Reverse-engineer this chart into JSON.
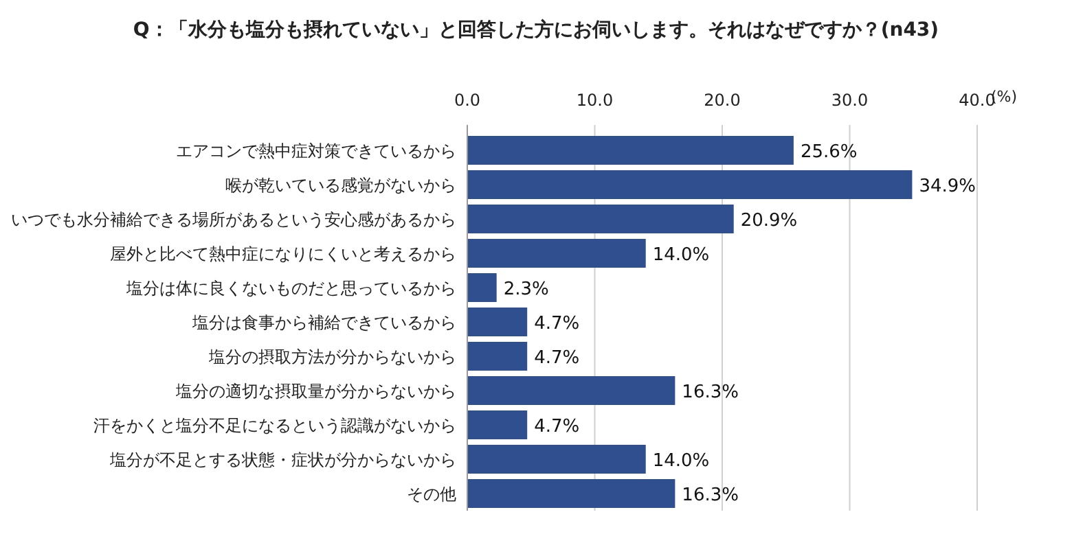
{
  "chart_data": {
    "type": "bar",
    "orientation": "horizontal",
    "title": "Q：「水分も塩分も摂れていない」と回答した方にお伺いします。それはなぜですか？(n43)",
    "xlabel": "(%)",
    "categories": [
      "エアコンで熱中症対策できているから",
      "喉が乾いている感覚がないから",
      "いつでも水分補給できる場所があるという安心感があるから",
      "屋外と比べて熱中症になりにくいと考えるから",
      "塩分は体に良くないものだと思っているから",
      "塩分は食事から補給できているから",
      "塩分の摂取方法が分からないから",
      "塩分の適切な摂取量が分からないから",
      "汗をかくと塩分不足になるという認識がないから",
      "塩分が不足とする状態・症状が分からないから",
      "その他"
    ],
    "values": [
      25.6,
      34.9,
      20.9,
      14.0,
      2.3,
      4.7,
      4.7,
      16.3,
      4.7,
      14.0,
      16.3
    ],
    "value_labels": [
      "25.6%",
      "34.9%",
      "20.9%",
      "14.0%",
      "2.3%",
      "4.7%",
      "4.7%",
      "16.3%",
      "4.7%",
      "14.0%",
      "16.3%"
    ],
    "color": "#2f4f8f",
    "xlim": [
      0,
      40
    ],
    "xticks": [
      {
        "value": 0,
        "label": "0.0"
      },
      {
        "value": 10,
        "label": "10.0"
      },
      {
        "value": 20,
        "label": "20.0"
      },
      {
        "value": 30,
        "label": "30.0"
      },
      {
        "value": 40,
        "label": "40.0"
      }
    ],
    "grid": "x"
  }
}
